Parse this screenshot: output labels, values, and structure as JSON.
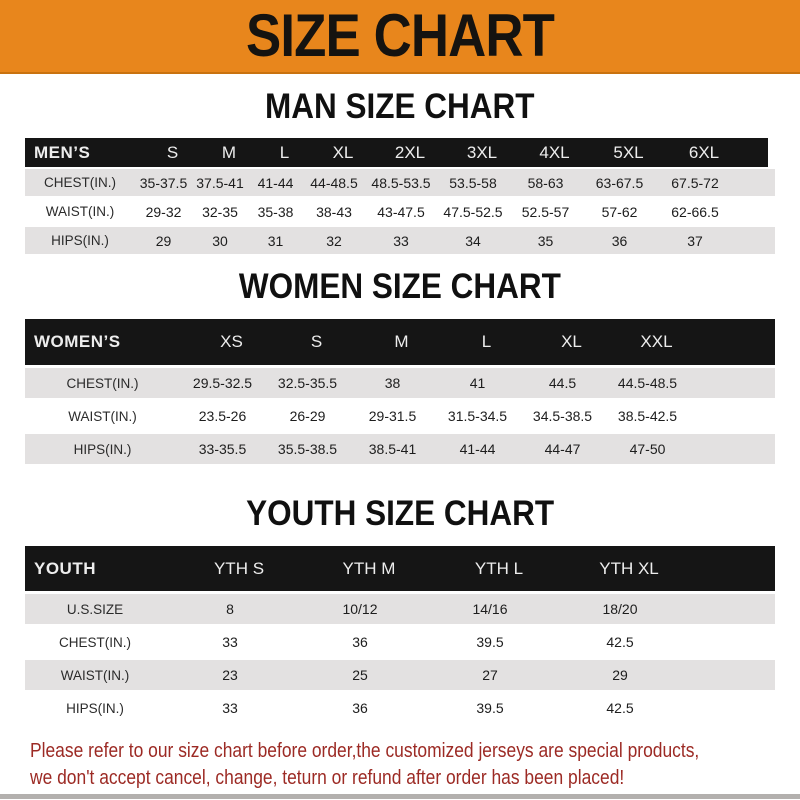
{
  "banner": {
    "title": "SIZE CHART"
  },
  "colors": {
    "banner_bg": "#E8861C",
    "banner_text": "#151310",
    "table_header_bg": "#151515",
    "row_gray": "#E3E1E1",
    "footer_text": "#9C2A24",
    "bottom_strip": "#B3B0AE"
  },
  "men": {
    "heading": "MAN SIZE CHART",
    "header": [
      "MEN’S",
      "S",
      "M",
      "L",
      "XL",
      "2XL",
      "3XL",
      "4XL",
      "5XL",
      "6XL"
    ],
    "rows": [
      {
        "label": "CHEST(IN.)",
        "values": [
          "35-37.5",
          "37.5-41",
          "41-44",
          "44-48.5",
          "48.5-53.5",
          "53.5-58",
          "58-63",
          "63-67.5",
          "67.5-72"
        ]
      },
      {
        "label": "WAIST(IN.)",
        "values": [
          "29-32",
          "32-35",
          "35-38",
          "38-43",
          "43-47.5",
          "47.5-52.5",
          "52.5-57",
          "57-62",
          "62-66.5"
        ]
      },
      {
        "label": "HIPS(IN.)",
        "values": [
          "29",
          "30",
          "31",
          "32",
          "33",
          "34",
          "35",
          "36",
          "37"
        ]
      }
    ]
  },
  "women": {
    "heading": "WOMEN SIZE CHART",
    "header": [
      "WOMEN’S",
      "XS",
      "S",
      "M",
      "L",
      "XL",
      "XXL"
    ],
    "rows": [
      {
        "label": "CHEST(IN.)",
        "values": [
          "29.5-32.5",
          "32.5-35.5",
          "38",
          "41",
          "44.5",
          "44.5-48.5"
        ]
      },
      {
        "label": "WAIST(IN.)",
        "values": [
          "23.5-26",
          "26-29",
          "29-31.5",
          "31.5-34.5",
          "34.5-38.5",
          "38.5-42.5"
        ]
      },
      {
        "label": "HIPS(IN.)",
        "values": [
          "33-35.5",
          "35.5-38.5",
          "38.5-41",
          "41-44",
          "44-47",
          "47-50"
        ]
      }
    ]
  },
  "youth": {
    "heading": "YOUTH SIZE CHART",
    "header": [
      "YOUTH",
      "YTH S",
      "YTH M",
      "YTH L",
      "YTH XL"
    ],
    "rows": [
      {
        "label": "U.S.SIZE",
        "values": [
          "8",
          "10/12",
          "14/16",
          "18/20"
        ]
      },
      {
        "label": "CHEST(IN.)",
        "values": [
          "33",
          "36",
          "39.5",
          "42.5"
        ]
      },
      {
        "label": "WAIST(IN.)",
        "values": [
          "23",
          "25",
          "27",
          "29"
        ]
      },
      {
        "label": "HIPS(IN.)",
        "values": [
          "33",
          "36",
          "39.5",
          "42.5"
        ]
      }
    ]
  },
  "footer": {
    "lines": [
      "Please refer to our size chart before order,the customized jerseys are special products,",
      "we don't accept cancel, change, teturn or refund after order has been placed!"
    ]
  }
}
